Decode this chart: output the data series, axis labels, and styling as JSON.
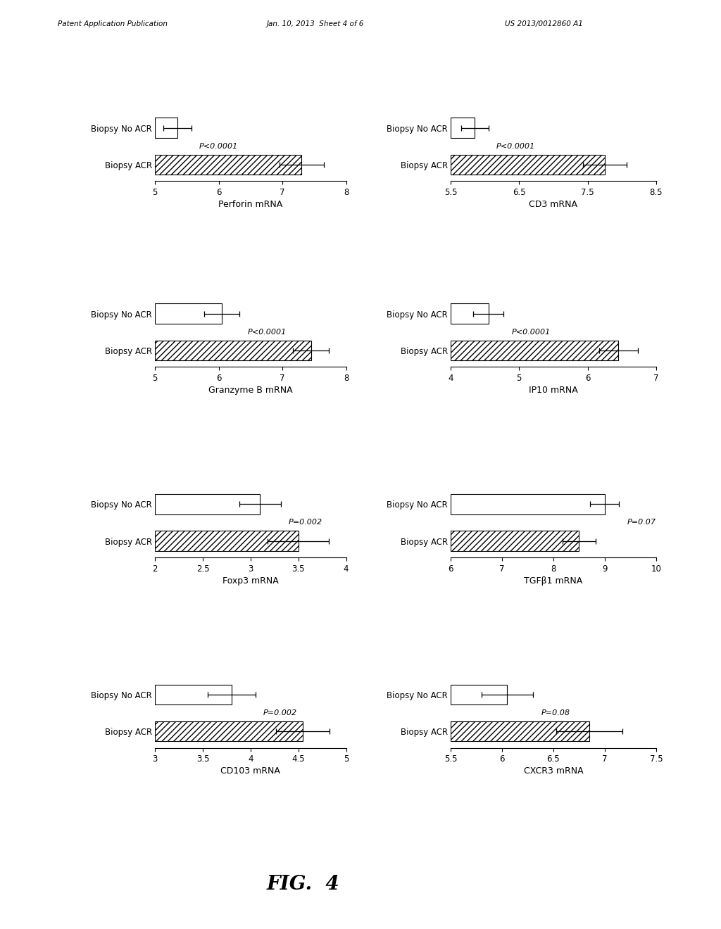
{
  "charts": [
    {
      "title": "Perforin mRNA",
      "xlim": [
        5,
        8
      ],
      "xticks": [
        5,
        6,
        7,
        8
      ],
      "no_acr_val": 5.35,
      "no_acr_err": 0.22,
      "acr_val": 7.3,
      "acr_err": 0.35,
      "ptext": "P<0.0001",
      "row": 0,
      "col": 0
    },
    {
      "title": "CD3 mRNA",
      "xlim": [
        5.5,
        8.5
      ],
      "xticks": [
        5.5,
        6.5,
        7.5,
        8.5
      ],
      "no_acr_val": 5.85,
      "no_acr_err": 0.2,
      "acr_val": 7.75,
      "acr_err": 0.32,
      "ptext": "P<0.0001",
      "row": 0,
      "col": 1
    },
    {
      "title": "Granzyme B mRNA",
      "xlim": [
        5,
        8
      ],
      "xticks": [
        5,
        6,
        7,
        8
      ],
      "no_acr_val": 6.05,
      "no_acr_err": 0.28,
      "acr_val": 7.45,
      "acr_err": 0.28,
      "ptext": "P<0.0001",
      "row": 1,
      "col": 0
    },
    {
      "title": "IP10 mRNA",
      "xlim": [
        4,
        7
      ],
      "xticks": [
        4,
        5,
        6,
        7
      ],
      "no_acr_val": 4.55,
      "no_acr_err": 0.22,
      "acr_val": 6.45,
      "acr_err": 0.28,
      "ptext": "P<0.0001",
      "row": 1,
      "col": 1
    },
    {
      "title": "Foxp3 mRNA",
      "xlim": [
        2.0,
        4.0
      ],
      "xticks": [
        2.0,
        2.5,
        3.0,
        3.5,
        4.0
      ],
      "no_acr_val": 3.1,
      "no_acr_err": 0.22,
      "acr_val": 3.5,
      "acr_err": 0.32,
      "ptext": "P=0.002",
      "row": 2,
      "col": 0
    },
    {
      "title": "TGFβ1 mRNA",
      "xlim": [
        6,
        10
      ],
      "xticks": [
        6,
        7,
        8,
        9,
        10
      ],
      "no_acr_val": 9.0,
      "no_acr_err": 0.28,
      "acr_val": 8.5,
      "acr_err": 0.32,
      "ptext": "P=0.07",
      "row": 2,
      "col": 1
    },
    {
      "title": "CD103 mRNA",
      "xlim": [
        3.0,
        5.0
      ],
      "xticks": [
        3.0,
        3.5,
        4.0,
        4.5,
        5.0
      ],
      "no_acr_val": 3.8,
      "no_acr_err": 0.25,
      "acr_val": 4.55,
      "acr_err": 0.28,
      "ptext": "P=0.002",
      "row": 3,
      "col": 0
    },
    {
      "title": "CXCR3 mRNA",
      "xlim": [
        5.5,
        7.5
      ],
      "xticks": [
        5.5,
        6.0,
        6.5,
        7.0,
        7.5
      ],
      "no_acr_val": 6.05,
      "no_acr_err": 0.25,
      "acr_val": 6.85,
      "acr_err": 0.32,
      "ptext": "P=0.08",
      "row": 3,
      "col": 1
    }
  ],
  "header_line1": "Patent Application Publication",
  "header_line2": "Jan. 10, 2013  Sheet 4 of 6",
  "header_line3": "US 2013/0012860 A1",
  "fig_label": "FIG.  4",
  "bg_color": "#ffffff",
  "hatch_acr": "////",
  "font_size": 8.5,
  "xlabel_fontsize": 9,
  "fig_label_fontsize": 20
}
